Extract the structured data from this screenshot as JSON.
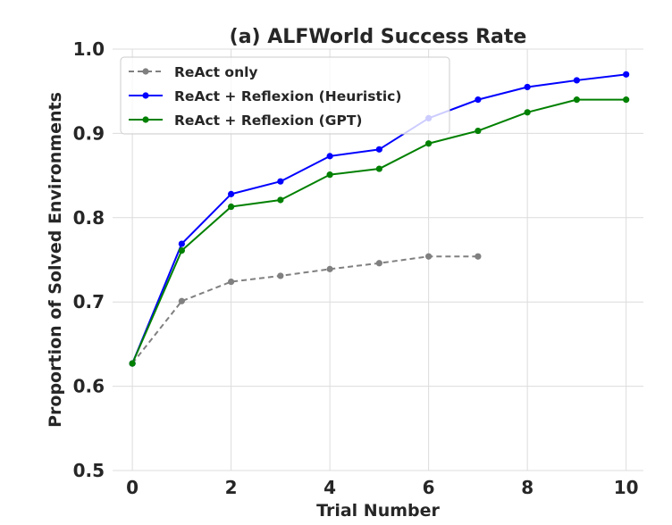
{
  "chart_data": {
    "type": "line",
    "title": "(a) ALFWorld Success Rate",
    "xlabel": "Trial Number",
    "ylabel": "Proportion of Solved Environments",
    "xlim": [
      -0.4,
      10.35
    ],
    "ylim": [
      0.5,
      1.0
    ],
    "xticks": [
      0,
      2,
      4,
      6,
      8,
      10
    ],
    "xtick_labels": [
      "0",
      "2",
      "4",
      "6",
      "8",
      "10"
    ],
    "yticks": [
      0.5,
      0.6,
      0.7,
      0.8,
      0.9,
      1.0
    ],
    "ytick_labels": [
      "0.5",
      "0.6",
      "0.7",
      "0.8",
      "0.9",
      "1.0"
    ],
    "grid": true,
    "legend_position": "top-left",
    "series": [
      {
        "name": "ReAct only",
        "color": "#808080",
        "dashed": true,
        "x": [
          0,
          1,
          2,
          3,
          4,
          5,
          6,
          7
        ],
        "values": [
          0.627,
          0.701,
          0.724,
          0.731,
          0.739,
          0.746,
          0.754,
          0.754
        ]
      },
      {
        "name": "ReAct + Reflexion (Heuristic)",
        "color": "#0000ff",
        "dashed": false,
        "x": [
          0,
          1,
          2,
          3,
          4,
          5,
          6,
          7,
          8,
          9,
          10
        ],
        "values": [
          0.627,
          0.769,
          0.828,
          0.843,
          0.873,
          0.881,
          0.918,
          0.94,
          0.955,
          0.963,
          0.97
        ]
      },
      {
        "name": "ReAct + Reflexion (GPT)",
        "color": "#008000",
        "dashed": false,
        "x": [
          0,
          1,
          2,
          3,
          4,
          5,
          6,
          7,
          8,
          9,
          10
        ],
        "values": [
          0.627,
          0.761,
          0.813,
          0.821,
          0.851,
          0.858,
          0.888,
          0.903,
          0.925,
          0.94,
          0.94
        ]
      }
    ]
  }
}
